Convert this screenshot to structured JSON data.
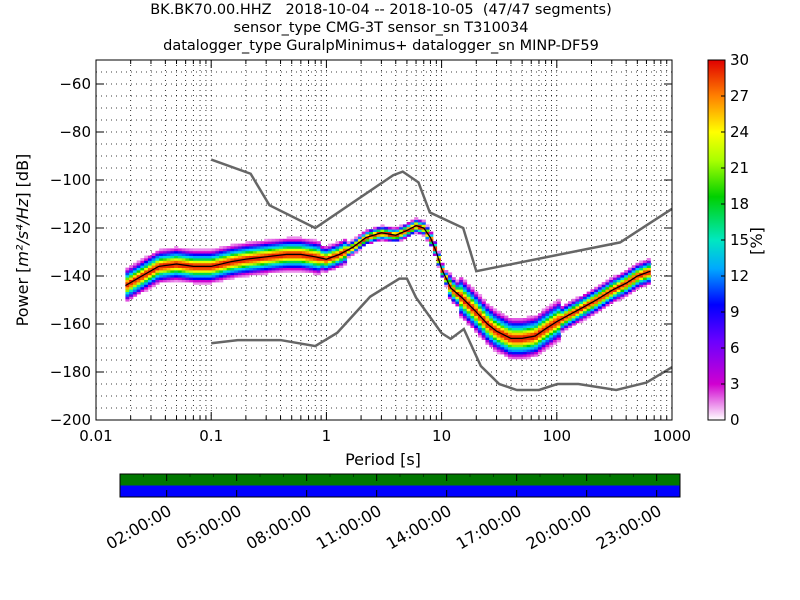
{
  "title_lines": [
    "BK.BK70.00.HHZ   2018-10-04 -- 2018-10-05  (47/47 segments)",
    "sensor_type CMG-3T sensor_sn T310034",
    "datalogger_type GuralpMinimus+ datalogger_sn MINP-DF59"
  ],
  "chart_data": {
    "type": "heatmap",
    "xlabel": "Period [s]",
    "ylabel_prefix": "Power [",
    "ylabel_units": "m²/s⁴/Hz",
    "ylabel_suffix": "] [dB]",
    "x_scale": "log",
    "xlim": [
      0.01,
      1000
    ],
    "ylim": [
      -200,
      -50
    ],
    "x_ticks": [
      0.01,
      0.1,
      1,
      10,
      100,
      1000
    ],
    "x_tick_labels": [
      "0.01",
      "0.1",
      "1",
      "10",
      "100",
      "1000"
    ],
    "y_ticks": [
      -200,
      -180,
      -160,
      -140,
      -120,
      -100,
      -80,
      -60
    ],
    "y_tick_labels": [
      "−200",
      "−180",
      "−160",
      "−140",
      "−120",
      "−100",
      "−80",
      "−60"
    ],
    "grid": true,
    "nhnm": {
      "period": [
        0.1,
        0.22,
        0.32,
        0.8,
        3.8,
        4.6,
        6.3,
        7.9,
        15.4,
        20,
        354.8,
        1000
      ],
      "power": [
        -91.5,
        -97.4,
        -110.5,
        -120,
        -98,
        -96.5,
        -101,
        -113.5,
        -120,
        -138,
        -126,
        -112
      ]
    },
    "nlnm": {
      "period": [
        0.1,
        0.17,
        0.4,
        0.8,
        1.24,
        2.4,
        4.3,
        5,
        6,
        10,
        12,
        15.6,
        21.9,
        31.6,
        45,
        70,
        101,
        154,
        328,
        600,
        1000
      ],
      "power": [
        -168,
        -166.7,
        -166.7,
        -169.2,
        -163.7,
        -148.6,
        -141.1,
        -141.1,
        -149,
        -163.8,
        -166.2,
        -162.1,
        -177.5,
        -185,
        -187.5,
        -187.5,
        -185,
        -185,
        -187.5,
        -184.4,
        -178
      ]
    },
    "psd_mode": {
      "period": [
        0.018,
        0.025,
        0.035,
        0.05,
        0.07,
        0.1,
        0.15,
        0.2,
        0.3,
        0.45,
        0.6,
        0.8,
        1.0,
        1.3,
        1.7,
        2.2,
        3.0,
        4.0,
        5.0,
        6.0,
        7.0,
        8.0,
        9.0,
        10.0,
        12.0,
        15.0,
        20.0,
        25.0,
        30.0,
        40.0,
        50.0,
        65.0,
        80.0,
        100.0,
        130.0,
        170.0,
        220.0,
        300.0,
        400.0,
        500.0,
        650.0
      ],
      "power": [
        -144,
        -140,
        -136,
        -135,
        -136,
        -136,
        -134,
        -133,
        -132,
        -131,
        -131,
        -132,
        -133,
        -131,
        -128,
        -124,
        -122,
        -123,
        -121,
        -119,
        -120,
        -124,
        -130,
        -137,
        -145,
        -149,
        -155,
        -160,
        -163,
        -166,
        -166,
        -165,
        -162,
        -159,
        -156,
        -153,
        -150,
        -146,
        -143,
        -140,
        -138
      ]
    },
    "colorbar": {
      "label": "[%]",
      "min": 0,
      "max": 30,
      "ticks": [
        0,
        3,
        6,
        9,
        12,
        15,
        18,
        21,
        24,
        27,
        30
      ]
    },
    "timeline": {
      "tick_labels": [
        "02:00:00",
        "05:00:00",
        "08:00:00",
        "11:00:00",
        "14:00:00",
        "17:00:00",
        "20:00:00",
        "23:00:00"
      ],
      "top_band_color": "#007700",
      "bottom_band_color": "#0000ff"
    }
  }
}
